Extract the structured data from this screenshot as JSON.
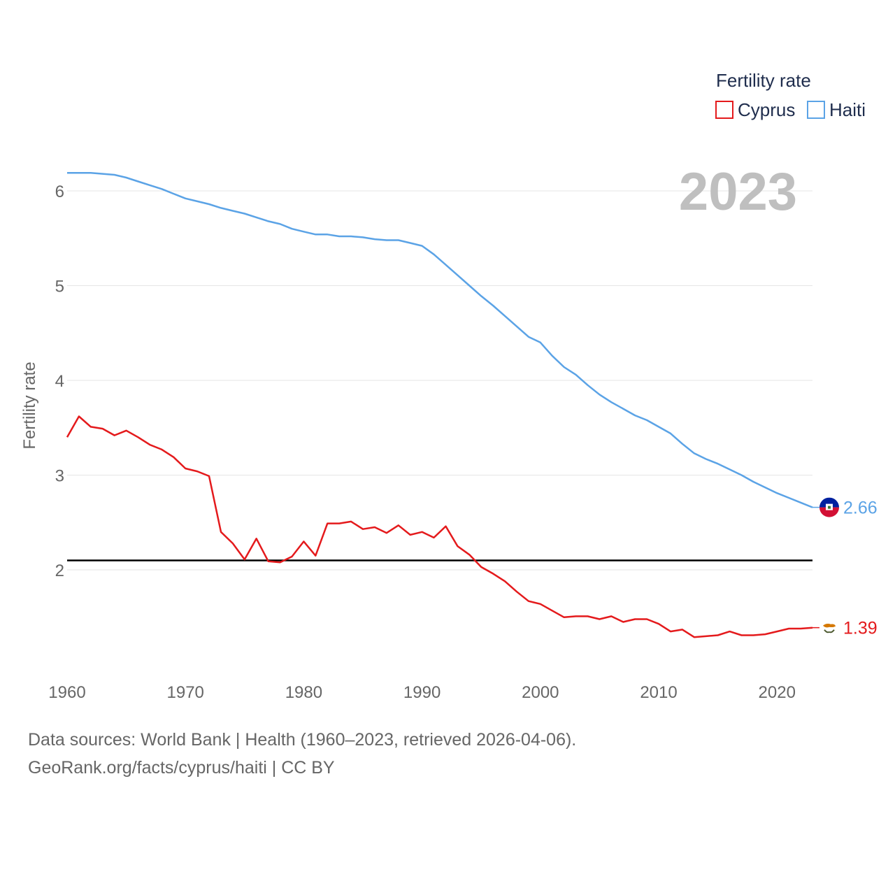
{
  "chart_data": {
    "type": "line",
    "title": "",
    "year_label": "2023",
    "ylabel": "Fertility rate",
    "xlabel": "",
    "xlim": [
      1960,
      2023
    ],
    "ylim": [
      1.0,
      6.5
    ],
    "x_ticks": [
      "1960",
      "1970",
      "1980",
      "1990",
      "2000",
      "2010",
      "2020"
    ],
    "y_ticks": [
      "2",
      "3",
      "4",
      "5",
      "6"
    ],
    "reference_line": 2.1,
    "legend": {
      "title": "Fertility rate",
      "position": "top-right",
      "entries": [
        "Cyprus",
        "Haiti"
      ]
    },
    "series": [
      {
        "name": "Cyprus",
        "color": "#e41a1c",
        "end_label": "1.39",
        "flag_icon": "cyprus-flag-icon",
        "x": [
          1960,
          1961,
          1962,
          1963,
          1964,
          1965,
          1966,
          1967,
          1968,
          1969,
          1970,
          1971,
          1972,
          1973,
          1974,
          1975,
          1976,
          1977,
          1978,
          1979,
          1980,
          1981,
          1982,
          1983,
          1984,
          1985,
          1986,
          1987,
          1988,
          1989,
          1990,
          1991,
          1992,
          1993,
          1994,
          1995,
          1996,
          1997,
          1998,
          1999,
          2000,
          2001,
          2002,
          2003,
          2004,
          2005,
          2006,
          2007,
          2008,
          2009,
          2010,
          2011,
          2012,
          2013,
          2014,
          2015,
          2016,
          2017,
          2018,
          2019,
          2020,
          2021,
          2022,
          2023
        ],
        "values": [
          3.4,
          3.62,
          3.51,
          3.49,
          3.42,
          3.47,
          3.4,
          3.32,
          3.27,
          3.19,
          3.07,
          3.04,
          2.99,
          2.4,
          2.28,
          2.11,
          2.33,
          2.09,
          2.08,
          2.14,
          2.3,
          2.15,
          2.49,
          2.49,
          2.51,
          2.43,
          2.45,
          2.39,
          2.47,
          2.37,
          2.4,
          2.34,
          2.46,
          2.25,
          2.16,
          2.03,
          1.96,
          1.88,
          1.77,
          1.67,
          1.64,
          1.57,
          1.5,
          1.51,
          1.51,
          1.48,
          1.51,
          1.45,
          1.48,
          1.48,
          1.43,
          1.35,
          1.37,
          1.29,
          1.3,
          1.31,
          1.35,
          1.31,
          1.31,
          1.32,
          1.35,
          1.38,
          1.38,
          1.39
        ]
      },
      {
        "name": "Haiti",
        "color": "#5ba3e6",
        "end_label": "2.66",
        "flag_icon": "haiti-flag-icon",
        "x": [
          1960,
          1961,
          1962,
          1963,
          1964,
          1965,
          1966,
          1967,
          1968,
          1969,
          1970,
          1971,
          1972,
          1973,
          1974,
          1975,
          1976,
          1977,
          1978,
          1979,
          1980,
          1981,
          1982,
          1983,
          1984,
          1985,
          1986,
          1987,
          1988,
          1989,
          1990,
          1991,
          1992,
          1993,
          1994,
          1995,
          1996,
          1997,
          1998,
          1999,
          2000,
          2001,
          2002,
          2003,
          2004,
          2005,
          2006,
          2007,
          2008,
          2009,
          2010,
          2011,
          2012,
          2013,
          2014,
          2015,
          2016,
          2017,
          2018,
          2019,
          2020,
          2021,
          2022,
          2023
        ],
        "values": [
          6.19,
          6.19,
          6.19,
          6.18,
          6.17,
          6.14,
          6.1,
          6.06,
          6.02,
          5.97,
          5.92,
          5.89,
          5.86,
          5.82,
          5.79,
          5.76,
          5.72,
          5.68,
          5.65,
          5.6,
          5.57,
          5.54,
          5.54,
          5.52,
          5.52,
          5.51,
          5.49,
          5.48,
          5.48,
          5.45,
          5.42,
          5.33,
          5.22,
          5.11,
          5.0,
          4.89,
          4.79,
          4.68,
          4.57,
          4.46,
          4.4,
          4.26,
          4.14,
          4.06,
          3.95,
          3.85,
          3.77,
          3.7,
          3.63,
          3.58,
          3.51,
          3.44,
          3.33,
          3.23,
          3.17,
          3.12,
          3.06,
          3.0,
          2.93,
          2.87,
          2.81,
          2.76,
          2.71,
          2.66
        ]
      }
    ]
  },
  "footer": {
    "line1": "Data sources: World Bank | Health (1960–2023, retrieved 2026-04-06).",
    "line2": "GeoRank.org/facts/cyprus/haiti | CC BY"
  }
}
